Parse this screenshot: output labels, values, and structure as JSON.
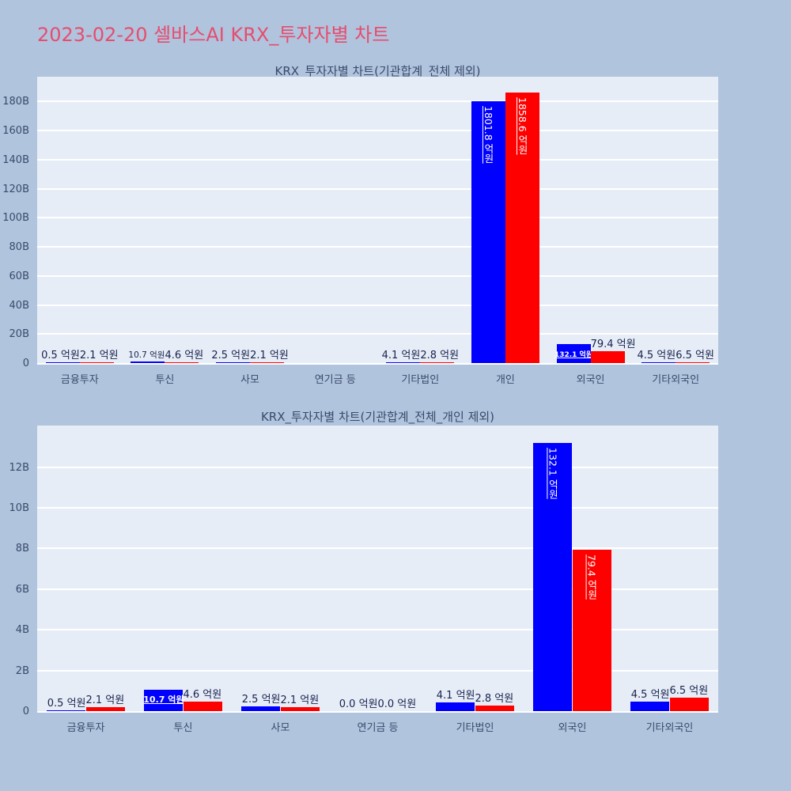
{
  "page_title": "2023-02-20 셀바스AI KRX_투자자별 차트",
  "colors": {
    "background": "#b0c4de",
    "plot_bg": "#e7edf7",
    "grid": "#ffffff",
    "title": "#e64d6e",
    "axis_text": "#3a4a6b",
    "value_text": "#17224d",
    "blue": "#0000ff",
    "red": "#ff0000"
  },
  "chart_data": [
    {
      "type": "bar",
      "title": "KRX_투자자별 차트(기관합계_전체 제외)",
      "unit": "억원",
      "unit_scale_to_b": 0.1,
      "grid": true,
      "legend": false,
      "ylim_b": [
        0,
        197
      ],
      "yticks_b": [
        0,
        20,
        40,
        60,
        80,
        100,
        120,
        140,
        160,
        180
      ],
      "ytick_labels": [
        "0",
        "20B",
        "40B",
        "60B",
        "80B",
        "100B",
        "120B",
        "140B",
        "160B",
        "180B"
      ],
      "categories": [
        "금융투자",
        "투신",
        "사모",
        "연기금 등",
        "기타법인",
        "개인",
        "외국인",
        "기타외국인"
      ],
      "series": [
        {
          "color": "blue",
          "values_eokwon": [
            0.5,
            10.7,
            2.5,
            0.0,
            4.1,
            1801.8,
            132.1,
            4.5
          ],
          "labels": [
            "0.5 억원",
            "10.7 억원",
            "2.5 억원",
            "",
            "4.1 억원",
            "1801.8 억원",
            "132.1 억원",
            "4.5 억원"
          ],
          "label_styles": [
            "above",
            "above-small",
            "above",
            "none",
            "above",
            "vertical",
            "inside-small",
            "above"
          ]
        },
        {
          "color": "red",
          "values_eokwon": [
            2.1,
            4.6,
            2.1,
            0.0,
            2.8,
            1858.6,
            79.4,
            6.5
          ],
          "labels": [
            "2.1 억원",
            "4.6 억원",
            "2.1 억원",
            "",
            "2.8 억원",
            "1858.6 억원",
            "79.4 억원",
            "6.5 억원"
          ],
          "label_styles": [
            "above",
            "above",
            "above",
            "none",
            "above",
            "vertical",
            "above",
            "above"
          ]
        }
      ]
    },
    {
      "type": "bar",
      "title": "KRX_투자자별 차트(기관합계_전체_개인 제외)",
      "unit": "억원",
      "unit_scale_to_b": 0.1,
      "grid": true,
      "legend": false,
      "ylim_b": [
        0,
        14.05
      ],
      "yticks_b": [
        0,
        2,
        4,
        6,
        8,
        10,
        12
      ],
      "ytick_labels": [
        "0",
        "2B",
        "4B",
        "6B",
        "8B",
        "10B",
        "12B"
      ],
      "categories": [
        "금융투자",
        "투신",
        "사모",
        "연기금 등",
        "기타법인",
        "외국인",
        "기타외국인"
      ],
      "series": [
        {
          "color": "blue",
          "values_eokwon": [
            0.5,
            10.7,
            2.5,
            0.0,
            4.1,
            132.1,
            4.5
          ],
          "labels": [
            "0.5 억원",
            "10.7 억원",
            "2.5 억원",
            "0.0 억원",
            "4.1 억원",
            "132.1 억원",
            "4.5 억원"
          ],
          "label_styles": [
            "above",
            "inside",
            "above",
            "above",
            "above",
            "vertical",
            "above"
          ]
        },
        {
          "color": "red",
          "values_eokwon": [
            2.1,
            4.6,
            2.1,
            0.0,
            2.8,
            79.4,
            6.5
          ],
          "labels": [
            "2.1 억원",
            "4.6 억원",
            "2.1 억원",
            "0.0 억원",
            "2.8 억원",
            "79.4 억원",
            "6.5 억원"
          ],
          "label_styles": [
            "above",
            "above",
            "above",
            "above",
            "above",
            "vertical",
            "above"
          ]
        }
      ]
    }
  ]
}
